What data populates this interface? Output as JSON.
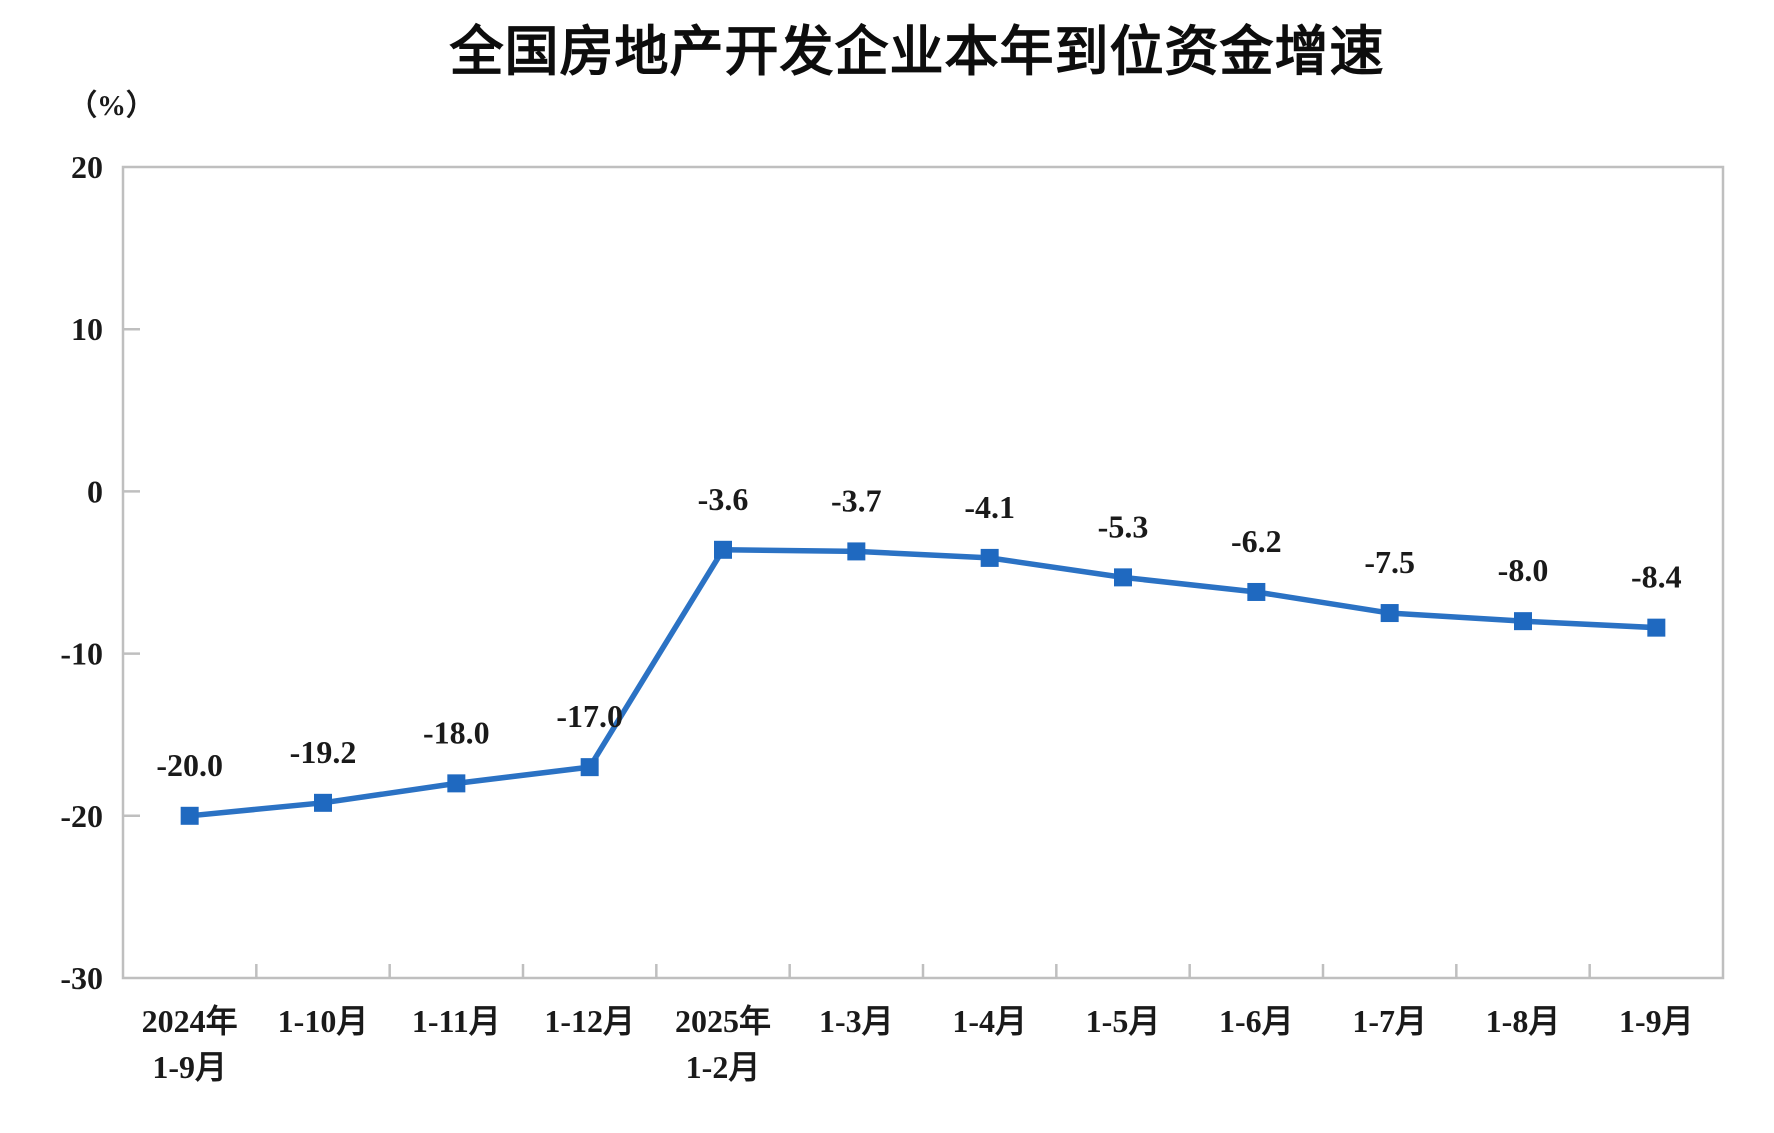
{
  "page": {
    "background": "#ffffff"
  },
  "chart_data": {
    "type": "line",
    "title": "全国房地产开发企业本年到位资金增速",
    "unit_label": "（%）",
    "xlabel": "",
    "ylabel": "（%）",
    "categories": [
      [
        "2024年",
        "1-9月"
      ],
      [
        "1-10月"
      ],
      [
        "1-11月"
      ],
      [
        "1-12月"
      ],
      [
        "2025年",
        "1-2月"
      ],
      [
        "1-3月"
      ],
      [
        "1-4月"
      ],
      [
        "1-5月"
      ],
      [
        "1-6月"
      ],
      [
        "1-7月"
      ],
      [
        "1-8月"
      ],
      [
        "1-9月"
      ]
    ],
    "values": [
      -20.0,
      -19.2,
      -18.0,
      -17.0,
      -3.6,
      -3.7,
      -4.1,
      -5.3,
      -6.2,
      -7.5,
      -8.0,
      -8.4
    ],
    "data_labels": [
      "-20.0",
      "-19.2",
      "-18.0",
      "-17.0",
      "-3.6",
      "-3.7",
      "-4.1",
      "-5.3",
      "-6.2",
      "-7.5",
      "-8.0",
      "-8.4"
    ],
    "y_ticks": [
      20,
      10,
      0,
      -10,
      -20,
      -30
    ],
    "ylim": [
      -30,
      20
    ],
    "grid": false,
    "legend_position": "none",
    "colors": {
      "line": "#2B72C4",
      "marker": "#1F69C0",
      "axis": "#BFBFBF",
      "text": "#1a1a1a",
      "title": "#0d0d0d"
    }
  }
}
